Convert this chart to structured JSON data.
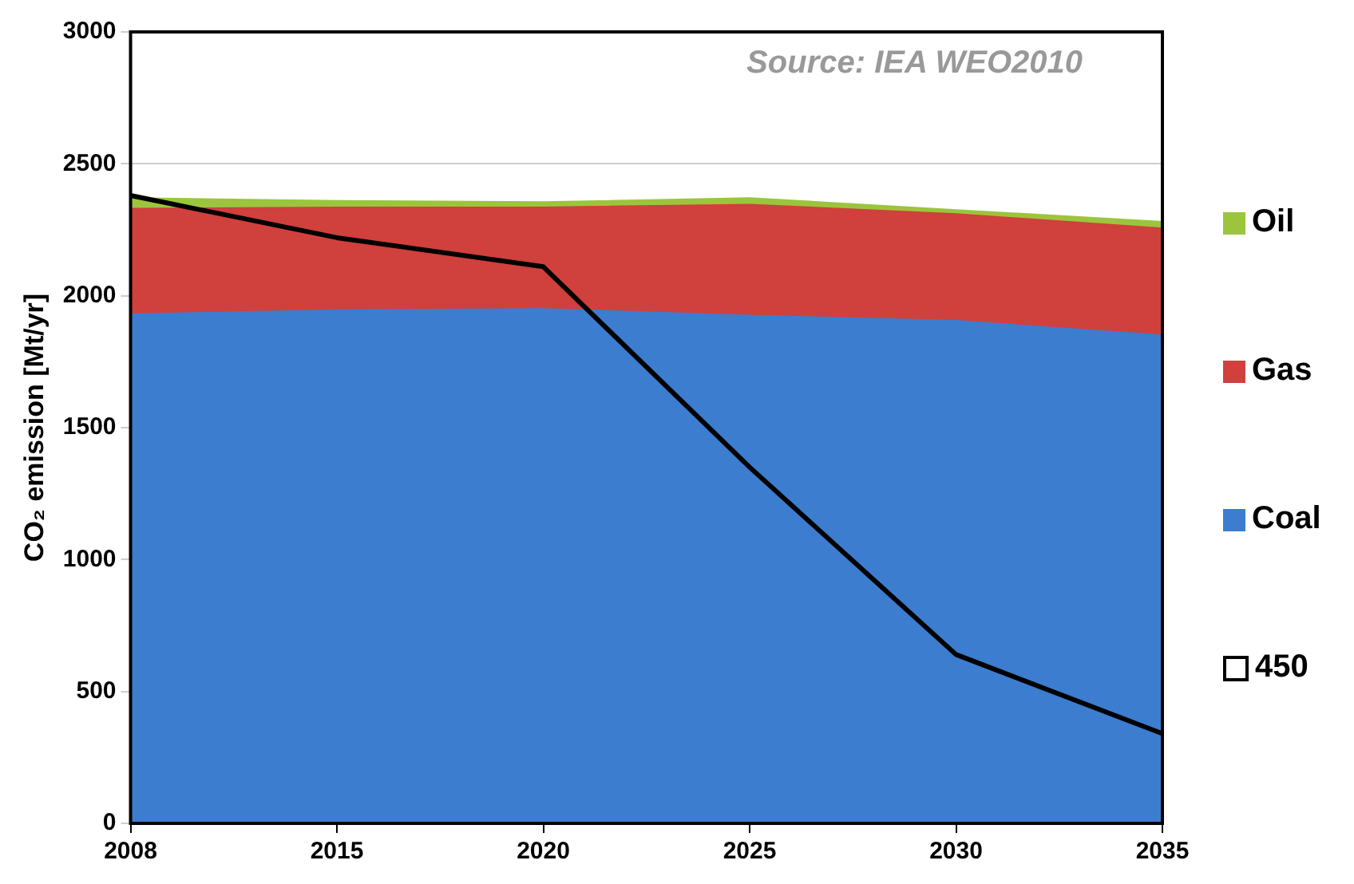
{
  "chart_data": {
    "type": "area",
    "ylabel": "CO₂ emission [Mt/yr]",
    "annotations": [
      "Source: IEA WEO2010"
    ],
    "categories": [
      "2008",
      "2015",
      "2020",
      "2025",
      "2030",
      "2035"
    ],
    "stacked": true,
    "ylim": [
      0,
      3000
    ],
    "yticks": [
      0,
      500,
      1000,
      1500,
      2000,
      2500,
      3000
    ],
    "grid": "y",
    "legend": "right",
    "series": [
      {
        "name": "Coal",
        "color": "#3c7dd0",
        "values": [
          1930,
          1945,
          1950,
          1925,
          1905,
          1850
        ]
      },
      {
        "name": "Gas",
        "color": "#d0403c",
        "values": [
          400,
          390,
          385,
          420,
          405,
          405
        ]
      },
      {
        "name": "Oil",
        "color": "#9bc53d",
        "values": [
          40,
          25,
          20,
          25,
          15,
          25
        ]
      },
      {
        "name": "450",
        "type": "line",
        "color": "#000000",
        "values": [
          2380,
          2220,
          2110,
          1350,
          640,
          340
        ]
      }
    ]
  }
}
